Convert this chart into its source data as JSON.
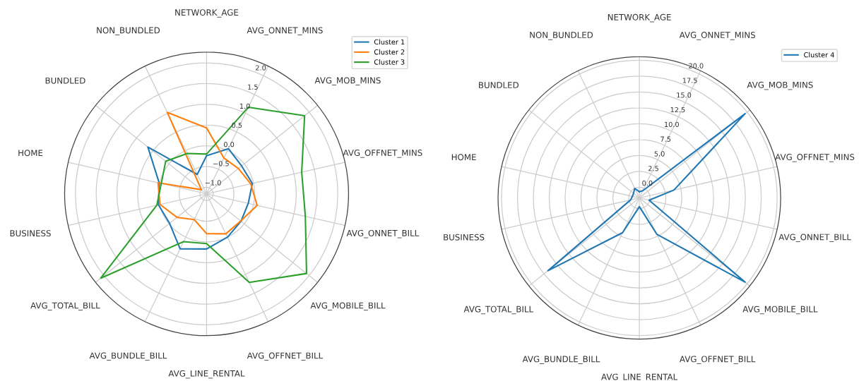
{
  "chart_data": [
    {
      "type": "radar",
      "categories": [
        "NETWORK_AGE",
        "AVG_ONNET_MINS",
        "AVG_MOB_MINS",
        "AVG_OFFNET_MINS",
        "AVG_ONNET_BILL",
        "AVG_MOBILE_BILL",
        "AVG_OFFNET_BILL",
        "AVG_LINE_RENTAL",
        "AVG_BUNDLE_BILL",
        "AVG_TOTAL_BILL",
        "BUSINESS",
        "HOME",
        "BUNDLED",
        "NON_BUNDLED"
      ],
      "series": [
        {
          "name": "Cluster 1",
          "color": "#1f77b4",
          "values": [
            -0.24,
            0.05,
            -0.08,
            -0.03,
            -0.13,
            -0.1,
            0.0,
            0.17,
            0.31,
            -0.02,
            0.03,
            0.01,
            0.65,
            -0.64
          ]
        },
        {
          "name": "Cluster 2",
          "color": "#ff7f0e",
          "values": [
            0.43,
            -0.2,
            -0.18,
            -0.07,
            0.09,
            -0.11,
            -0.09,
            -0.2,
            -0.47,
            -0.25,
            -0.01,
            0.04,
            -1.0,
            1.02
          ]
        },
        {
          "name": "Cluster 3",
          "color": "#2ca02c",
          "values": [
            -0.2,
            1.16,
            1.86,
            1.19,
            1.28,
            1.92,
            1.21,
            0.04,
            0.12,
            2.1,
            0.07,
            -0.04,
            0.1,
            -0.08
          ]
        }
      ],
      "ylim": [
        -1.16,
        2.26
      ],
      "yticks": [
        {
          "value": -1.0,
          "label": "−1.0"
        },
        {
          "value": -0.5,
          "label": "−0.5"
        },
        {
          "value": 0,
          "label": "0.0"
        },
        {
          "value": 0.5,
          "label": "0.5"
        },
        {
          "value": 1.0,
          "label": "1.0"
        },
        {
          "value": 1.5,
          "label": "1.5"
        },
        {
          "value": 2.0,
          "label": "2.0"
        }
      ],
      "grid": true,
      "legend": "top right"
    },
    {
      "type": "radar",
      "categories": [
        "NETWORK_AGE",
        "AVG_ONNET_MINS",
        "AVG_MOB_MINS",
        "AVG_OFFNET_MINS",
        "AVG_ONNET_BILL",
        "AVG_MOBILE_BILL",
        "AVG_OFFNET_BILL",
        "AVG_LINE_RENTAL",
        "AVG_BUNDLE_BILL",
        "AVG_TOTAL_BILL",
        "BUSINESS",
        "HOME",
        "BUNDLED",
        "NON_BUNDLED"
      ],
      "series": [
        {
          "name": "Cluster 4",
          "color": "#1f77b4",
          "values": [
            -0.7,
            -0.4,
            19.6,
            3.9,
            -0.1,
            19.6,
            4.7,
            -0.3,
            4.4,
            16.7,
            -0.25,
            -0.55,
            -0.5,
            0.0
          ]
        }
      ],
      "ylim": [
        -1.67,
        20.55
      ],
      "yticks": [
        {
          "value": 0,
          "label": "0.0"
        },
        {
          "value": 2.5,
          "label": "2.5"
        },
        {
          "value": 5,
          "label": "5.0"
        },
        {
          "value": 7.5,
          "label": "7.5"
        },
        {
          "value": 10,
          "label": "10.0"
        },
        {
          "value": 12.5,
          "label": "12.5"
        },
        {
          "value": 15,
          "label": "15.0"
        },
        {
          "value": 17.5,
          "label": "17.5"
        },
        {
          "value": 20,
          "label": "20.0"
        }
      ],
      "grid": true,
      "legend": "top right"
    }
  ]
}
